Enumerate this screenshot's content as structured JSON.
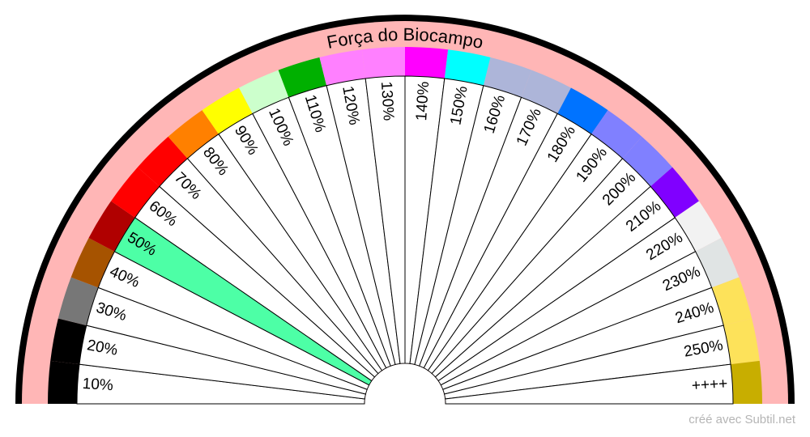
{
  "title": "Força do Biocampo",
  "credit": "créé avec Subtil.net",
  "highlighted_label": "50%",
  "colors": {
    "outer_ring": "#000000",
    "title_band": "#ffb6b6",
    "highlight": "#4dffa6",
    "sector_fill": "#ffffff",
    "line": "#000000"
  },
  "sectors": [
    {
      "label": "10%",
      "color": "#000000"
    },
    {
      "label": "20%",
      "color": "#000000"
    },
    {
      "label": "30%",
      "color": "#777777"
    },
    {
      "label": "40%",
      "color": "#a65300"
    },
    {
      "label": "50%",
      "color": "#b00000"
    },
    {
      "label": "60%",
      "color": "#ff0000"
    },
    {
      "label": "70%",
      "color": "#ff0000"
    },
    {
      "label": "80%",
      "color": "#ff8000"
    },
    {
      "label": "90%",
      "color": "#ffff00"
    },
    {
      "label": "100%",
      "color": "#ccffcc"
    },
    {
      "label": "110%",
      "color": "#00b000"
    },
    {
      "label": "120%",
      "color": "#ff80ff"
    },
    {
      "label": "130%",
      "color": "#ff80ff"
    },
    {
      "label": "140%",
      "color": "#ff00ff"
    },
    {
      "label": "150%",
      "color": "#00ffff"
    },
    {
      "label": "160%",
      "color": "#adb5d9"
    },
    {
      "label": "170%",
      "color": "#adb5d9"
    },
    {
      "label": "180%",
      "color": "#0073ff"
    },
    {
      "label": "190%",
      "color": "#8080ff"
    },
    {
      "label": "200%",
      "color": "#8080ff"
    },
    {
      "label": "210%",
      "color": "#8000ff"
    },
    {
      "label": "220%",
      "color": "#f2f2f2"
    },
    {
      "label": "230%",
      "color": "#e0e4e4"
    },
    {
      "label": "240%",
      "color": "#fde25a"
    },
    {
      "label": "250%",
      "color": "#fde25a"
    },
    {
      "label": "++++",
      "color": "#c8ae00"
    }
  ]
}
